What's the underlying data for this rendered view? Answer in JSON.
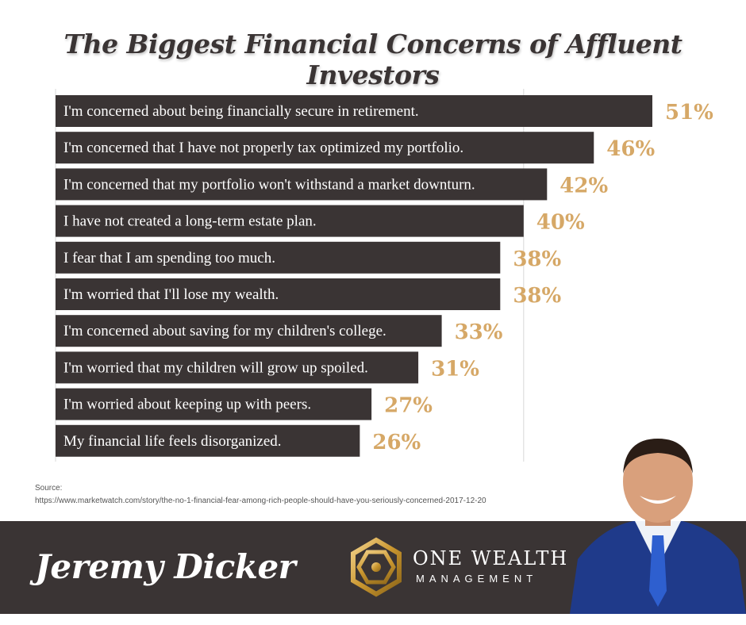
{
  "chart_data": {
    "type": "bar",
    "orientation": "horizontal",
    "title": "The Biggest Financial Concerns of Affluent Investors",
    "categories": [
      "I'm concerned about being financially secure in retirement.",
      "I'm concerned that I have not properly tax optimized my portfolio.",
      "I'm concerned that my portfolio won't withstand a market downturn.",
      "I have not created a long-term estate plan.",
      "I fear that I am spending too much.",
      "I'm worried that I'll lose my wealth.",
      "I'm concerned about saving for my children's college.",
      "I'm worried that my children will grow up spoiled.",
      "I'm worried about keeping up with peers.",
      "My financial life feels disorganized."
    ],
    "values": [
      51,
      46,
      42,
      40,
      38,
      38,
      33,
      31,
      27,
      26
    ],
    "value_labels": [
      "51%",
      "46%",
      "42%",
      "40%",
      "38%",
      "38%",
      "33%",
      "31%",
      "27%",
      "26%"
    ],
    "xlim": [
      0,
      51
    ],
    "grid": true,
    "bar_color": "#3a3434",
    "label_color": "#d6a867"
  },
  "source": {
    "label": "Source:",
    "url": "https://www.marketwatch.com/story/the-no-1-financial-fear-among-rich-people-should-have-you-seriously-concerned-2017-12-20"
  },
  "footer": {
    "name": "Jeremy Dicker",
    "brand": "ONE WEALTH",
    "brand_sub": "MANAGEMENT"
  },
  "colors": {
    "footer_bg": "#3a3434",
    "gold": "#d6a867",
    "suit_blue": "#1f3a8a"
  }
}
